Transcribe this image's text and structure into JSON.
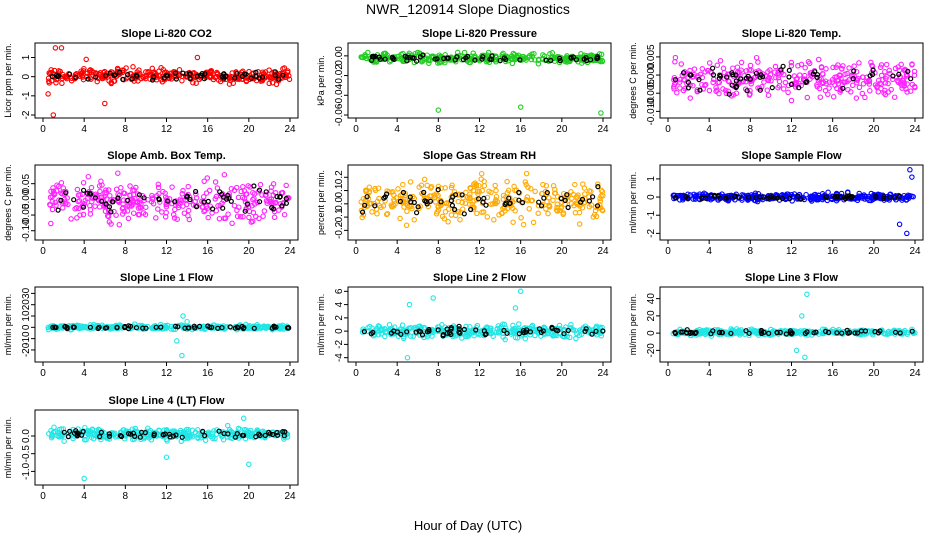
{
  "title": "NWR_120914  Slope Diagnostics",
  "xlabel": "Hour of Day (UTC)",
  "colors": {
    "red": "#ff0000",
    "green": "#22cc22",
    "magenta": "#ff22ff",
    "orange": "#ffaa00",
    "blue": "#0000ff",
    "cyan": "#22e6e6",
    "black": "#000000"
  },
  "chart_data": [
    {
      "type": "scatter",
      "title": "Slope Li-820 CO2",
      "ylabel": "Licor ppm per min.",
      "xlim": [
        0,
        24
      ],
      "xticks": [
        "0",
        "4",
        "8",
        "12",
        "16",
        "20",
        "24"
      ],
      "ylim": [
        -2,
        1.6
      ],
      "yticks": [
        "-2",
        "-1",
        "0",
        "1"
      ],
      "ytick_values": [
        -2,
        -1,
        0,
        1
      ],
      "color": "#ff0000",
      "series_summary": {
        "bulk_range": [
          -0.5,
          0.6
        ],
        "outliers": [
          [
            1.0,
            -2.0
          ],
          [
            0.5,
            -0.9
          ],
          [
            1.2,
            1.5
          ],
          [
            1.8,
            1.5
          ],
          [
            4.2,
            0.9
          ],
          [
            6.0,
            -1.4
          ],
          [
            15.0,
            1.0
          ]
        ]
      }
    },
    {
      "type": "scatter",
      "title": "Slope Li-820 Pressure",
      "ylabel": "kPa per min.",
      "xlim": [
        0,
        24
      ],
      "xticks": [
        "0",
        "4",
        "8",
        "12",
        "16",
        "20",
        "24"
      ],
      "ylim": [
        -0.06,
        0.01
      ],
      "yticks": [
        "-0.06",
        "-0.04",
        "-0.02",
        "0.00"
      ],
      "ytick_values": [
        -0.06,
        -0.04,
        -0.02,
        0
      ],
      "color": "#22cc22",
      "series_summary": {
        "bulk_range": [
          -0.01,
          0.005
        ],
        "outliers": [
          [
            8.0,
            -0.055
          ],
          [
            16.0,
            -0.052
          ],
          [
            23.8,
            -0.058
          ]
        ]
      }
    },
    {
      "type": "scatter",
      "title": "Slope Li-820 Temp.",
      "ylabel": "degrees C per min.",
      "xlim": [
        0,
        24
      ],
      "xticks": [
        "0",
        "4",
        "8",
        "12",
        "16",
        "20",
        "24"
      ],
      "ylim": [
        -0.011,
        0.008
      ],
      "yticks": [
        "-0.010",
        "-0.005",
        "0.000",
        "0.005"
      ],
      "ytick_values": [
        -0.01,
        -0.005,
        0,
        0.005
      ],
      "color": "#ff22ff",
      "series_summary": {
        "bulk_range": [
          -0.009,
          0.007
        ]
      }
    },
    {
      "type": "scatter",
      "title": "Slope Amb. Box Temp.",
      "ylabel": "degrees C per min.",
      "xlim": [
        0,
        24
      ],
      "xticks": [
        "0",
        "4",
        "8",
        "12",
        "16",
        "20",
        "24"
      ],
      "ylim": [
        -0.12,
        0.1
      ],
      "yticks": [
        "-0.10",
        "-0.05",
        "0.00",
        "0.05"
      ],
      "ytick_values": [
        -0.1,
        -0.05,
        0,
        0.05
      ],
      "color": "#ff22ff",
      "series_summary": {
        "bulk_range": [
          -0.1,
          0.09
        ]
      }
    },
    {
      "type": "scatter",
      "title": "Slope Gas Stream RH",
      "ylabel": "percent per min.",
      "xlim": [
        0,
        24
      ],
      "xticks": [
        "0",
        "4",
        "8",
        "12",
        "16",
        "20",
        "24"
      ],
      "ylim": [
        -0.25,
        0.27
      ],
      "yticks": [
        "-0.2",
        "-0.1",
        "0.0",
        "0.1",
        "0.2"
      ],
      "ytick_values": [
        -0.2,
        -0.1,
        0,
        0.1,
        0.2
      ],
      "color": "#ffaa00",
      "series_summary": {
        "bulk_range": [
          -0.2,
          0.25
        ]
      }
    },
    {
      "type": "scatter",
      "title": "Slope Sample Flow",
      "ylabel": "ml/min per min.",
      "xlim": [
        0,
        24
      ],
      "xticks": [
        "0",
        "4",
        "8",
        "12",
        "16",
        "20",
        "24"
      ],
      "ylim": [
        -2.2,
        1.6
      ],
      "yticks": [
        "-2",
        "-1",
        "0",
        "1"
      ],
      "ytick_values": [
        -2,
        -1,
        0,
        1
      ],
      "color": "#0000ff",
      "series_summary": {
        "bulk_range": [
          -0.3,
          0.3
        ],
        "outliers": [
          [
            22.5,
            -1.5
          ],
          [
            23.2,
            -2.0
          ],
          [
            23.5,
            1.5
          ],
          [
            23.7,
            1.1
          ]
        ]
      }
    },
    {
      "type": "scatter",
      "title": "Slope Line 1 Flow",
      "ylabel": "ml/min per min.",
      "xlim": [
        0,
        24
      ],
      "xticks": [
        "0",
        "4",
        "8",
        "12",
        "16",
        "20",
        "24"
      ],
      "ylim": [
        -28,
        33
      ],
      "yticks": [
        "-20",
        "-10",
        "0",
        "10",
        "20",
        "30"
      ],
      "ytick_values": [
        -20,
        -10,
        0,
        10,
        20,
        30
      ],
      "color": "#22e6e6",
      "series_summary": {
        "bulk_range": [
          -3,
          3
        ],
        "outliers": [
          [
            13.5,
            -25
          ],
          [
            13.6,
            10
          ],
          [
            13.0,
            -12
          ],
          [
            14.0,
            5
          ]
        ]
      }
    },
    {
      "type": "scatter",
      "title": "Slope Line 2 Flow",
      "ylabel": "ml/min per min.",
      "xlim": [
        0,
        24
      ],
      "xticks": [
        "0",
        "4",
        "8",
        "12",
        "16",
        "20",
        "24"
      ],
      "ylim": [
        -4.2,
        6.2
      ],
      "yticks": [
        "-4",
        "-2",
        "0",
        "2",
        "4",
        "6"
      ],
      "ytick_values": [
        -4,
        -2,
        0,
        2,
        4,
        6
      ],
      "color": "#22e6e6",
      "series_summary": {
        "bulk_range": [
          -1.5,
          1.5
        ],
        "outliers": [
          [
            5.0,
            -4.0
          ],
          [
            5.2,
            4.0
          ],
          [
            7.5,
            5.0
          ],
          [
            16.0,
            6.0
          ],
          [
            15.5,
            3.5
          ]
        ]
      }
    },
    {
      "type": "scatter",
      "title": "Slope Line 3 Flow",
      "ylabel": "ml/min per min.",
      "xlim": [
        0,
        24
      ],
      "xticks": [
        "0",
        "4",
        "8",
        "12",
        "16",
        "20",
        "24"
      ],
      "ylim": [
        -30,
        50
      ],
      "yticks": [
        "-20",
        "0",
        "20",
        "40"
      ],
      "ytick_values": [
        -20,
        0,
        20,
        40
      ],
      "color": "#22e6e6",
      "series_summary": {
        "bulk_range": [
          -4,
          6
        ],
        "outliers": [
          [
            13.5,
            45
          ],
          [
            13.0,
            20
          ],
          [
            12.5,
            -20
          ],
          [
            13.3,
            -28
          ]
        ]
      }
    },
    {
      "type": "scatter",
      "title": "Slope Line 4 (LT) Flow",
      "ylabel": "ml/min per min.",
      "xlim": [
        0,
        24
      ],
      "xticks": [
        "0",
        "4",
        "8",
        "12",
        "16",
        "20",
        "24"
      ],
      "ylim": [
        -1.3,
        0.65
      ],
      "yticks": [
        "-1.0",
        "-0.5",
        "0.0"
      ],
      "ytick_values": [
        -1,
        -0.5,
        0
      ],
      "color": "#22e6e6",
      "series_summary": {
        "bulk_range": [
          -0.2,
          0.3
        ],
        "outliers": [
          [
            4.0,
            -1.2
          ],
          [
            12.0,
            -0.6
          ],
          [
            20.0,
            -0.8
          ],
          [
            19.5,
            0.5
          ]
        ]
      }
    }
  ]
}
